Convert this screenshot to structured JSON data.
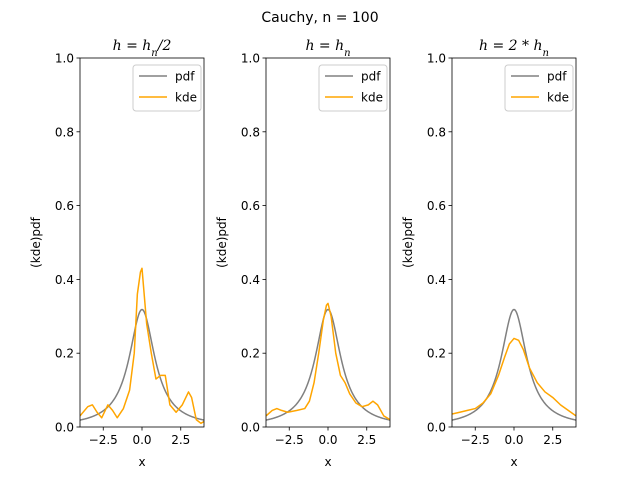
{
  "chart_data": {
    "suptitle": "Cauchy, n = 100",
    "type": "line",
    "xlim": [
      -4,
      4
    ],
    "ylim": [
      0,
      1
    ],
    "xticks": [
      -2.5,
      0.0,
      2.5
    ],
    "xtick_labels": [
      "−2.5",
      "0.0",
      "2.5"
    ],
    "yticks": [
      0.0,
      0.2,
      0.4,
      0.6,
      0.8,
      1.0
    ],
    "ytick_labels": [
      "0.0",
      "0.2",
      "0.4",
      "0.6",
      "0.8",
      "1.0"
    ],
    "legend_placement": "top-right",
    "colors": {
      "pdf": "#808080",
      "kde": "#ffa500"
    },
    "subplots": [
      {
        "title": "h = h_n/2",
        "title_main": "h = h",
        "title_sub": "n",
        "title_tail": "/2",
        "xlabel": "x",
        "ylabel": "(kde)pdf",
        "series": [
          {
            "name": "pdf",
            "kind": "cauchy"
          },
          {
            "name": "kde",
            "x": [
              -4.0,
              -3.5,
              -3.2,
              -2.9,
              -2.6,
              -2.2,
              -1.9,
              -1.6,
              -1.2,
              -0.8,
              -0.5,
              -0.3,
              -0.1,
              0.0,
              0.1,
              0.3,
              0.6,
              0.9,
              1.2,
              1.5,
              1.8,
              2.2,
              2.6,
              3.0,
              3.2,
              3.5,
              3.8,
              4.0
            ],
            "y": [
              0.03,
              0.055,
              0.06,
              0.04,
              0.025,
              0.06,
              0.045,
              0.025,
              0.05,
              0.1,
              0.2,
              0.36,
              0.42,
              0.43,
              0.38,
              0.28,
              0.2,
              0.13,
              0.14,
              0.14,
              0.06,
              0.04,
              0.06,
              0.095,
              0.08,
              0.02,
              0.01,
              0.015
            ]
          }
        ]
      },
      {
        "title": "h = h_n",
        "title_main": "h = h",
        "title_sub": "n",
        "title_tail": "",
        "xlabel": "x",
        "ylabel": "(kde)pdf",
        "series": [
          {
            "name": "pdf",
            "kind": "cauchy"
          },
          {
            "name": "kde",
            "x": [
              -4.0,
              -3.6,
              -3.3,
              -3.0,
              -2.6,
              -2.0,
              -1.5,
              -1.2,
              -0.9,
              -0.6,
              -0.3,
              -0.1,
              0.0,
              0.2,
              0.5,
              0.8,
              1.1,
              1.4,
              1.8,
              2.2,
              2.6,
              2.9,
              3.2,
              3.6,
              4.0
            ],
            "y": [
              0.03,
              0.045,
              0.05,
              0.045,
              0.04,
              0.045,
              0.05,
              0.07,
              0.12,
              0.2,
              0.29,
              0.33,
              0.335,
              0.3,
              0.2,
              0.14,
              0.12,
              0.09,
              0.065,
              0.055,
              0.06,
              0.07,
              0.06,
              0.03,
              0.02
            ]
          }
        ]
      },
      {
        "title": "h = 2 * h_n",
        "title_main": "h = 2 * h",
        "title_sub": "n",
        "title_tail": "",
        "xlabel": "x",
        "ylabel": "(kde)pdf",
        "series": [
          {
            "name": "pdf",
            "kind": "cauchy"
          },
          {
            "name": "kde",
            "x": [
              -4.0,
              -3.5,
              -3.0,
              -2.5,
              -2.0,
              -1.5,
              -1.0,
              -0.6,
              -0.3,
              0.0,
              0.3,
              0.6,
              1.0,
              1.5,
              2.0,
              2.5,
              3.0,
              3.5,
              4.0
            ],
            "y": [
              0.035,
              0.04,
              0.045,
              0.05,
              0.065,
              0.09,
              0.14,
              0.19,
              0.225,
              0.24,
              0.235,
              0.21,
              0.16,
              0.12,
              0.095,
              0.08,
              0.06,
              0.045,
              0.03
            ]
          }
        ]
      }
    ]
  }
}
